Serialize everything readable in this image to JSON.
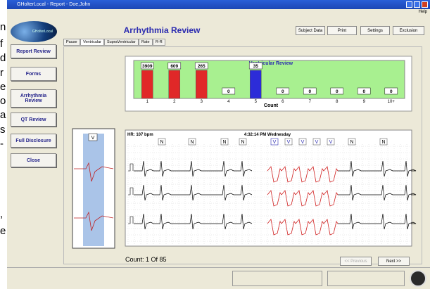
{
  "side_text": [
    "n",
    "f",
    "d",
    "r",
    "e",
    "o",
    "a",
    "s",
    "-",
    ",",
    "e"
  ],
  "window": {
    "title": "GHolterLocal - Report - Doe,John",
    "menu": "Help"
  },
  "nav": {
    "logo": "GHolterLocal",
    "buttons": [
      "Report Review",
      "Forms",
      "Arrhythmia Review",
      "QT Review",
      "Full Disclosure",
      "Close"
    ]
  },
  "header": {
    "title": "Arrhythmia Review",
    "buttons": [
      "Subject Data",
      "Print",
      "Settings",
      "Exclusion"
    ]
  },
  "tabs": [
    "Pause",
    "Ventricular",
    "SupraVentricular",
    "Rate",
    "R-R"
  ],
  "chart_data": {
    "type": "bar",
    "title": "Ventricular Review",
    "x_label": "Count",
    "categories": [
      "1",
      "2",
      "3",
      "4",
      "5",
      "6",
      "7",
      "8",
      "9",
      "10+"
    ],
    "values": [
      3909,
      609,
      265,
      0,
      35,
      0,
      0,
      0,
      0,
      0
    ],
    "color": "#e02828",
    "selected": 4,
    "selected_color": "#2c2cd8",
    "background": "#a8f090"
  },
  "strip": {
    "hr": "HR: 107 bpm",
    "time": "4:32:14 PM Wednesday",
    "beats": [
      "N",
      "N",
      "N",
      "N",
      "V",
      "V",
      "V",
      "V",
      "V",
      "N",
      "N"
    ],
    "thumb_label": "V",
    "count": "Count: 1 Of 85",
    "prev": "<< Previous",
    "next": "Next >>"
  }
}
